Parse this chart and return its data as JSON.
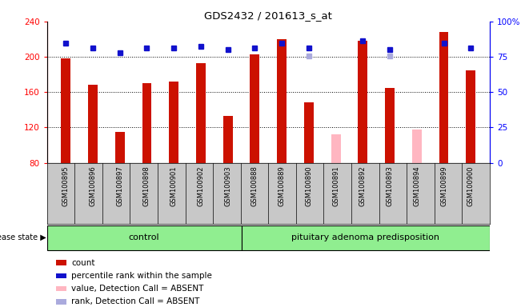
{
  "title": "GDS2432 / 201613_s_at",
  "samples": [
    "GSM100895",
    "GSM100896",
    "GSM100897",
    "GSM100898",
    "GSM100901",
    "GSM100902",
    "GSM100903",
    "GSM100888",
    "GSM100889",
    "GSM100890",
    "GSM100891",
    "GSM100892",
    "GSM100893",
    "GSM100894",
    "GSM100899",
    "GSM100900"
  ],
  "count_values": [
    198,
    168,
    115,
    170,
    172,
    193,
    133,
    203,
    220,
    148,
    null,
    218,
    165,
    null,
    228,
    185
  ],
  "rank_values": [
    215,
    210,
    205,
    210,
    210,
    212,
    208,
    210,
    215,
    210,
    null,
    218,
    208,
    null,
    215,
    210
  ],
  "absent_count": [
    null,
    null,
    null,
    null,
    null,
    null,
    null,
    null,
    null,
    null,
    112,
    null,
    null,
    118,
    null,
    null
  ],
  "absent_rank_values": [
    null,
    null,
    null,
    null,
    null,
    null,
    null,
    null,
    null,
    201,
    null,
    null,
    201,
    null,
    null,
    null
  ],
  "control_count": 7,
  "ylim_left": [
    80,
    240
  ],
  "ylim_right": [
    0,
    100
  ],
  "yticks_left": [
    80,
    120,
    160,
    200,
    240
  ],
  "yticks_right": [
    0,
    25,
    50,
    75,
    100
  ],
  "bar_color_red": "#CC1100",
  "bar_color_pink": "#FFB6C1",
  "rank_color_blue": "#1111CC",
  "rank_color_lightblue": "#AAAADD",
  "dotted_line_values": [
    120,
    160,
    200
  ],
  "bar_width": 0.35,
  "label_bg_color": "#C8C8C8",
  "group_color": "#90EE90"
}
